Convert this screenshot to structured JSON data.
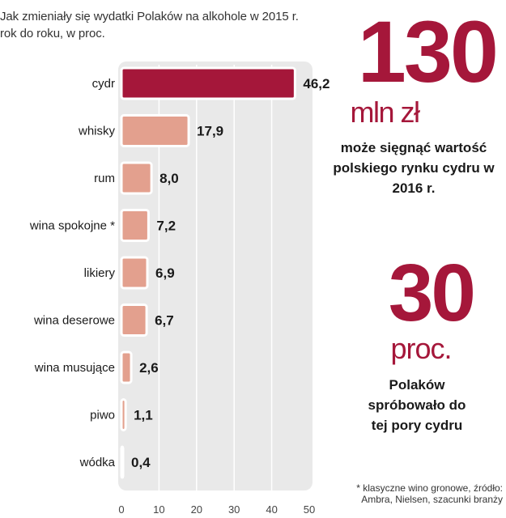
{
  "chart_data": {
    "type": "bar",
    "orientation": "horizontal",
    "title": "Jak zmieniały się wydatki Polaków na alkohole w 2015 r. rok do roku, w proc.",
    "categories": [
      "cydr",
      "whisky",
      "rum",
      "wina spokojne *",
      "likiery",
      "wina deserowe",
      "wina musujące",
      "piwo",
      "wódka"
    ],
    "values": [
      46.2,
      17.9,
      8.0,
      7.2,
      6.9,
      6.7,
      2.6,
      1.1,
      0.4
    ],
    "value_labels": [
      "46,2",
      "17,9",
      "8,0",
      "7,2",
      "6,9",
      "6,7",
      "2,6",
      "1,1",
      "0,4"
    ],
    "xlim": [
      0,
      50
    ],
    "xticks": [
      0,
      10,
      20,
      30,
      40,
      50
    ],
    "xtick_labels": [
      "0",
      "10",
      "20",
      "30",
      "40",
      "50"
    ],
    "grid": true,
    "colors": {
      "highlight": "#a5173a",
      "bar": "#e3a08e",
      "bar_border": "#ffffff",
      "background": "#e9e9e9",
      "grid": "#ffffff"
    }
  },
  "stat1": {
    "number": "130",
    "unit": "mln zł",
    "description": "może sięgnąć wartość polskiego rynku cydru w 2016 r."
  },
  "stat2": {
    "number": "30",
    "unit": "proc.",
    "description": "Polaków spróbowało do tej pory cydru"
  },
  "footnote": "* klasyczne wino gronowe, źródło: Ambra, Nielsen, szacunki branży",
  "accent_color": "#a5173a"
}
